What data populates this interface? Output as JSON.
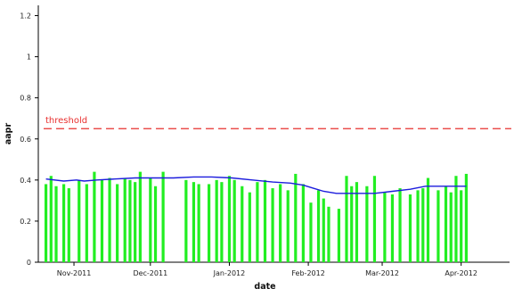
{
  "chart_data": {
    "type": "bar",
    "xlabel": "date",
    "ylabel": "aapr",
    "ylim": [
      0,
      1.25
    ],
    "yticks": [
      0,
      0.2,
      0.4,
      0.6,
      0.8,
      1,
      1.2
    ],
    "ytick_labels": [
      "0",
      "0.2",
      "0.4",
      "0.6",
      "0.8",
      "1",
      "1.2"
    ],
    "xlim": [
      "2011-10-18",
      "2012-04-20"
    ],
    "xticks": [
      "2011-11-01",
      "2011-12-01",
      "2012-01-01",
      "2012-02-01",
      "2012-03-01",
      "2012-04-01"
    ],
    "xtick_labels": [
      "Nov-2011",
      "Dec-2011",
      "Jan-2012",
      "Feb-2012",
      "Mar-2012",
      "Apr-2012"
    ],
    "grid": false,
    "threshold": {
      "value": 0.65,
      "label": "threshold",
      "color": "#e8302f",
      "style": "dashed"
    },
    "bar_color": "#22ee22",
    "line_color": "#1c1cdd",
    "bars": {
      "x": [
        "2011-10-21",
        "2011-10-23",
        "2011-10-25",
        "2011-10-28",
        "2011-10-30",
        "2011-11-03",
        "2011-11-06",
        "2011-11-09",
        "2011-11-12",
        "2011-11-15",
        "2011-11-18",
        "2011-11-21",
        "2011-11-23",
        "2011-11-25",
        "2011-11-27",
        "2011-12-01",
        "2011-12-03",
        "2011-12-06",
        "2011-12-15",
        "2011-12-18",
        "2011-12-20",
        "2011-12-24",
        "2011-12-27",
        "2011-12-29",
        "2012-01-01",
        "2012-01-03",
        "2012-01-06",
        "2012-01-09",
        "2012-01-12",
        "2012-01-15",
        "2012-01-18",
        "2012-01-21",
        "2012-01-24",
        "2012-01-27",
        "2012-01-30",
        "2012-02-02",
        "2012-02-05",
        "2012-02-07",
        "2012-02-09",
        "2012-02-13",
        "2012-02-16",
        "2012-02-18",
        "2012-02-20",
        "2012-02-24",
        "2012-02-27",
        "2012-03-02",
        "2012-03-05",
        "2012-03-08",
        "2012-03-12",
        "2012-03-15",
        "2012-03-17",
        "2012-03-19",
        "2012-03-23",
        "2012-03-26",
        "2012-03-28",
        "2012-03-30",
        "2012-04-01",
        "2012-04-03"
      ],
      "values": [
        0.38,
        0.42,
        0.37,
        0.38,
        0.36,
        0.4,
        0.38,
        0.44,
        0.4,
        0.41,
        0.38,
        0.41,
        0.4,
        0.39,
        0.44,
        0.41,
        0.37,
        0.44,
        0.4,
        0.39,
        0.38,
        0.38,
        0.4,
        0.39,
        0.42,
        0.4,
        0.37,
        0.34,
        0.39,
        0.4,
        0.36,
        0.38,
        0.35,
        0.43,
        0.38,
        0.29,
        0.35,
        0.31,
        0.27,
        0.26,
        0.42,
        0.37,
        0.39,
        0.37,
        0.42,
        0.34,
        0.33,
        0.36,
        0.33,
        0.35,
        0.36,
        0.41,
        0.35,
        0.37,
        0.34,
        0.42,
        0.35,
        0.43
      ]
    },
    "moving_average": {
      "x": [
        "2011-10-21",
        "2011-10-28",
        "2011-11-02",
        "2011-11-05",
        "2011-11-10",
        "2011-11-17",
        "2011-11-25",
        "2011-12-02",
        "2011-12-10",
        "2011-12-18",
        "2011-12-25",
        "2012-01-02",
        "2012-01-10",
        "2012-01-18",
        "2012-01-25",
        "2012-01-30",
        "2012-02-03",
        "2012-02-07",
        "2012-02-12",
        "2012-02-20",
        "2012-02-27",
        "2012-03-05",
        "2012-03-12",
        "2012-03-18",
        "2012-03-26",
        "2012-04-03"
      ],
      "values": [
        0.405,
        0.395,
        0.4,
        0.395,
        0.4,
        0.405,
        0.41,
        0.41,
        0.41,
        0.415,
        0.415,
        0.41,
        0.4,
        0.39,
        0.385,
        0.375,
        0.36,
        0.345,
        0.335,
        0.335,
        0.335,
        0.345,
        0.355,
        0.37,
        0.37,
        0.37
      ]
    }
  }
}
